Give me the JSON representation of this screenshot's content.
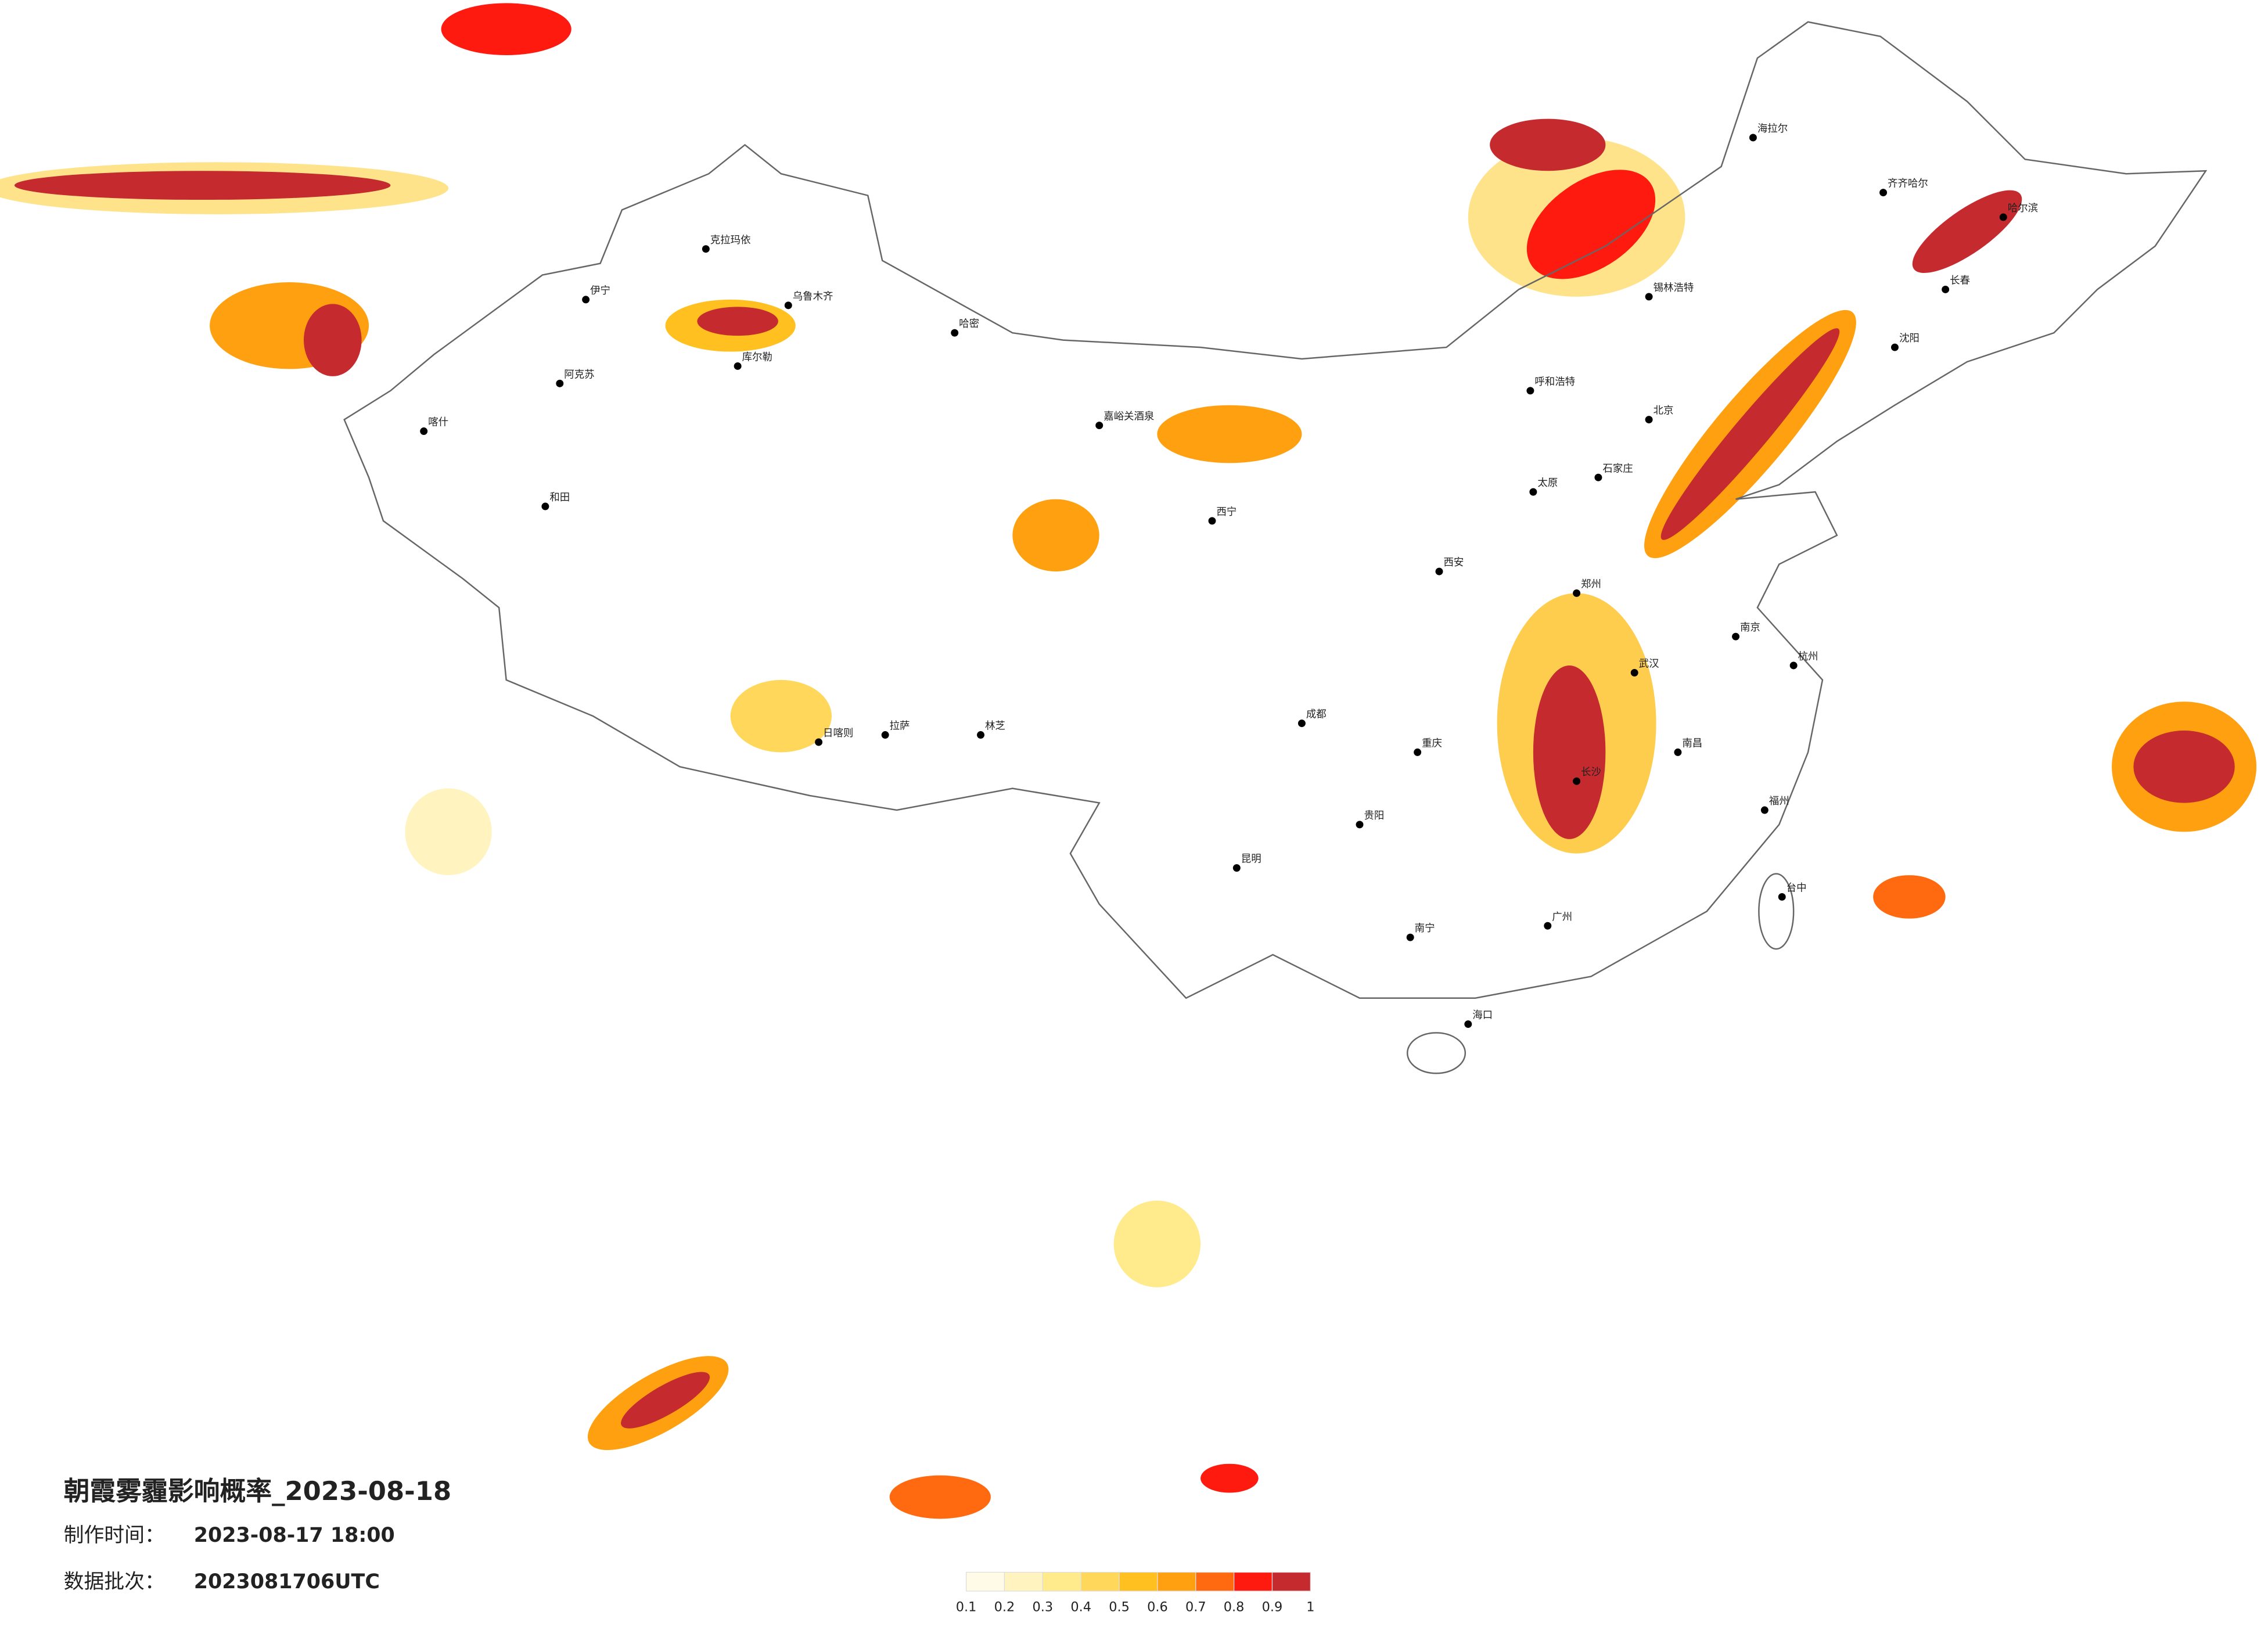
{
  "header": {
    "title": "朝霞雾霾影响概率_2023-08-18",
    "made_label": "制作时间：",
    "made_time": "2023-08-17 18:00",
    "batch_label": "数据批次：",
    "batch": "2023081706UTC"
  },
  "legend": {
    "ticks": [
      {
        "value": 0.1,
        "label": "0.1"
      },
      {
        "value": 0.2,
        "label": "0.2"
      },
      {
        "value": 0.3,
        "label": "0.3"
      },
      {
        "value": 0.4,
        "label": "0.4"
      },
      {
        "value": 0.5,
        "label": "0.5"
      },
      {
        "value": 0.6,
        "label": "0.6"
      },
      {
        "value": 0.7,
        "label": "0.7"
      },
      {
        "value": 0.8,
        "label": "0.8"
      },
      {
        "value": 0.9,
        "label": "0.9"
      },
      1
    ],
    "colors": [
      "#fffbe6",
      "#fff4bf",
      "#ffeb8c",
      "#ffd75a",
      "#ffc020",
      "#ffa010",
      "#ff6a10",
      "#ff1a10",
      "#c42a2e"
    ]
  },
  "cities": [
    "克拉玛依",
    "伊宁",
    "阿克苏",
    "和田",
    "喀什",
    "乌鲁木齐",
    "库尔勒",
    "哈密",
    "嘉峪关酒泉",
    "西宁",
    "拉萨",
    "日喀则",
    "林芝",
    "呼和浩特",
    "北京",
    "石家庄",
    "太原",
    "郑州",
    "西安",
    "成都",
    "重庆",
    "武汉",
    "长沙",
    "南昌",
    "杭州",
    "南京",
    "福州",
    "广州",
    "南宁",
    "海口",
    "昆明",
    "贵阳",
    "台中",
    "哈尔滨",
    "长春",
    "沈阳",
    "海拉尔",
    "齐齐哈尔",
    "锡林浩特"
  ]
}
